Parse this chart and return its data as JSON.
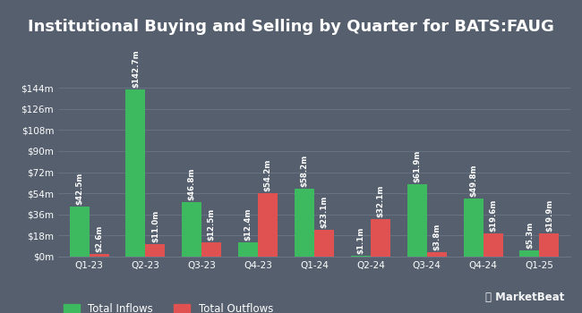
{
  "title": "Institutional Buying and Selling by Quarter for BATS:FAUG",
  "quarters": [
    "Q1-23",
    "Q2-23",
    "Q3-23",
    "Q4-23",
    "Q1-24",
    "Q2-24",
    "Q3-24",
    "Q4-24",
    "Q1-25"
  ],
  "inflows": [
    42.5,
    142.7,
    46.8,
    12.4,
    58.2,
    1.1,
    61.9,
    49.8,
    5.3
  ],
  "outflows": [
    2.6,
    11.0,
    12.5,
    54.2,
    23.1,
    32.1,
    3.8,
    19.6,
    19.9
  ],
  "inflow_labels": [
    "$42.5m",
    "$142.7m",
    "$46.8m",
    "$12.4m",
    "$58.2m",
    "$1.1m",
    "$61.9m",
    "$49.8m",
    "$5.3m"
  ],
  "outflow_labels": [
    "$2.6m",
    "$11.0m",
    "$12.5m",
    "$54.2m",
    "$23.1m",
    "$32.1m",
    "$3.8m",
    "$19.6m",
    "$19.9m"
  ],
  "inflow_color": "#3dba5f",
  "outflow_color": "#e05252",
  "bg_color": "#555f6e",
  "plot_bg_color": "#555f6e",
  "grid_color": "#6a7585",
  "text_color": "#ffffff",
  "yticks": [
    0,
    18,
    36,
    54,
    72,
    90,
    108,
    126,
    144
  ],
  "ytick_labels": [
    "$0m",
    "$18m",
    "$36m",
    "$54m",
    "$72m",
    "$90m",
    "$108m",
    "$126m",
    "$144m"
  ],
  "ylim": [
    0,
    160
  ],
  "bar_width": 0.35,
  "title_fontsize": 13,
  "label_fontsize": 6.2,
  "tick_fontsize": 7.5,
  "legend_fontsize": 8.5
}
